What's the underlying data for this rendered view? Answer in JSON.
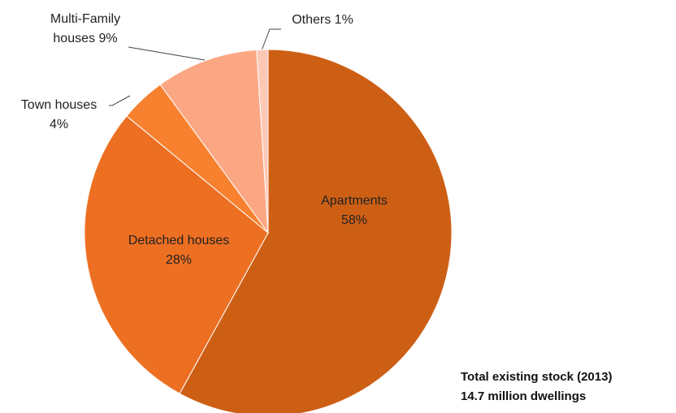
{
  "chart_data": {
    "type": "pie",
    "categories": [
      "Apartments",
      "Detached houses",
      "Town houses",
      "Multi-Family houses",
      "Others"
    ],
    "values": [
      58,
      28,
      4,
      9,
      1
    ],
    "value_labels": [
      "58%",
      "28%",
      "4%",
      "9%",
      "1%"
    ],
    "colors": [
      "#cd5f15",
      "#ed6f22",
      "#f7812f",
      "#fca784",
      "#fdc9b5"
    ],
    "notes": [
      "Total existing stock (2013)",
      "14.7 million dwellings"
    ]
  }
}
